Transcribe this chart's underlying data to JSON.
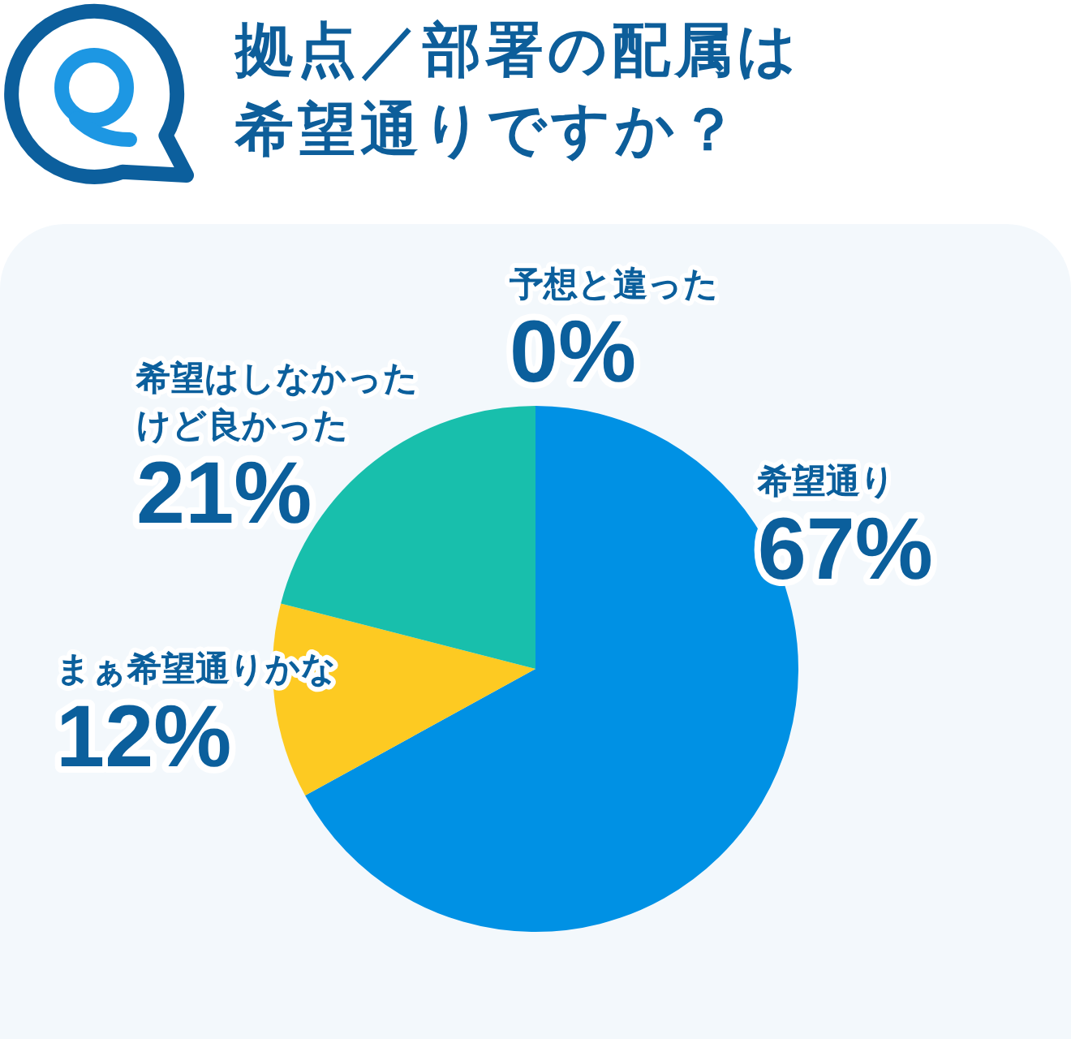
{
  "chart_data": {
    "type": "pie",
    "title": "拠点／部署の配属は希望通りですか？",
    "categories": [
      "希望通り",
      "まぁ希望通りかな",
      "希望はしなかったけど良かった",
      "予想と違った"
    ],
    "values": [
      67,
      12,
      21,
      0
    ],
    "colors": [
      "#0091e4",
      "#fdca22",
      "#18bfac",
      null
    ],
    "value_labels": [
      "67%",
      "12%",
      "21%",
      "0%"
    ]
  }
}
